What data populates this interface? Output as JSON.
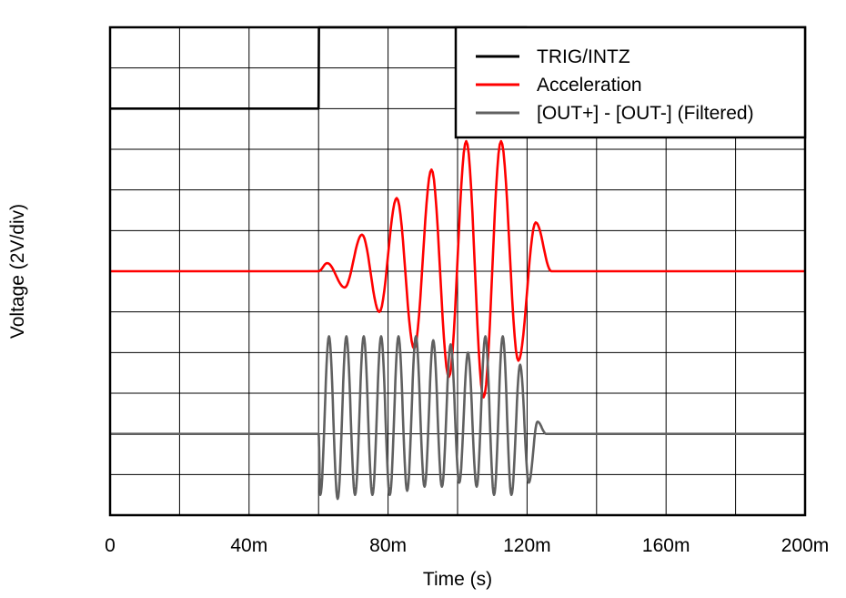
{
  "chart_data": {
    "type": "line",
    "title": "",
    "xlabel": "Time (s)",
    "ylabel": "Voltage (2V/div)",
    "xlim": [
      0,
      0.2
    ],
    "ylim": [
      -10,
      2
    ],
    "x_ticks": [
      0,
      0.04,
      0.08,
      0.12,
      0.16,
      0.2
    ],
    "x_tick_labels": [
      "0",
      "40m",
      "80m",
      "120m",
      "160m",
      "200m"
    ],
    "grid": true,
    "legend": "top-right",
    "series": [
      {
        "name": "TRIG/INTZ",
        "color": "#000000",
        "x": [
          0,
          0.06,
          0.0601,
          0.1199,
          0.12,
          0.2
        ],
        "y": [
          0,
          0,
          2,
          2,
          0,
          0
        ]
      },
      {
        "name": "Acceleration",
        "color": "#ff0000",
        "x": [
          0,
          0.06,
          0.0625,
          0.0675,
          0.0725,
          0.0775,
          0.0825,
          0.0875,
          0.0925,
          0.0975,
          0.1025,
          0.1075,
          0.1125,
          0.1175,
          0.1225,
          0.127,
          0.2
        ],
        "y": [
          -4,
          -4,
          -3.8,
          -4.4,
          -3.1,
          -5,
          -2.2,
          -5.9,
          -1.5,
          -6.6,
          -0.8,
          -7.1,
          -0.8,
          -6.2,
          -2.8,
          -4,
          -4
        ]
      },
      {
        "name": "[OUT+] - [OUT-] (Filtered)",
        "color": "#606060",
        "x": [
          0,
          0.06,
          0.0605,
          0.063,
          0.0655,
          0.068,
          0.0705,
          0.073,
          0.0755,
          0.078,
          0.0805,
          0.083,
          0.0855,
          0.088,
          0.0905,
          0.093,
          0.0955,
          0.098,
          0.1005,
          0.103,
          0.1055,
          0.108,
          0.1105,
          0.113,
          0.1155,
          0.118,
          0.1205,
          0.123,
          0.1255,
          0.128,
          0.2
        ],
        "y": [
          -8,
          -8,
          -9.5,
          -5.6,
          -9.6,
          -5.6,
          -9.5,
          -5.6,
          -9.5,
          -5.6,
          -9.5,
          -5.6,
          -9.4,
          -5.6,
          -9.3,
          -5.7,
          -9.3,
          -5.8,
          -9.2,
          -6,
          -9.3,
          -5.6,
          -9.5,
          -5.6,
          -9.5,
          -6.3,
          -9.2,
          -7.7,
          -8,
          -8,
          -8
        ]
      }
    ]
  }
}
